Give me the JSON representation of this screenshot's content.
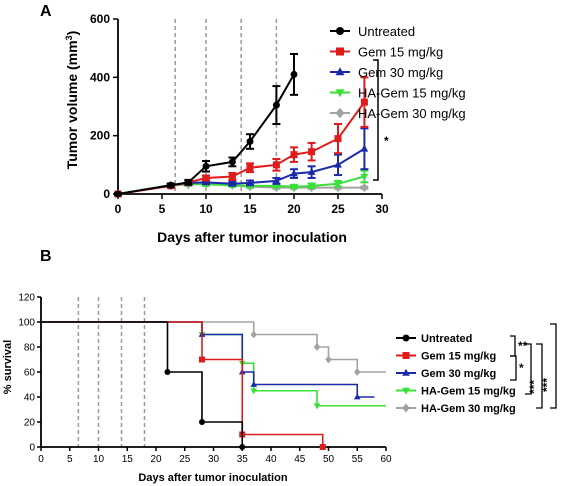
{
  "chart_data": [
    {
      "panel": "A",
      "type": "line",
      "xlabel": "Days after tumor inoculation",
      "ylabel": "Tumor volume (mm³)",
      "xlim": [
        0,
        30
      ],
      "ylim": [
        0,
        600
      ],
      "xticks": [
        0,
        5,
        10,
        15,
        20,
        25,
        30
      ],
      "yticks": [
        0,
        200,
        400,
        600
      ],
      "treatment_days": [
        6.5,
        10,
        14,
        18
      ],
      "significance": "*",
      "series": [
        {
          "name": "Untreated",
          "color": "#000000",
          "marker": "circle",
          "x": [
            0,
            6,
            8,
            10,
            13,
            15,
            18,
            20
          ],
          "y": [
            0,
            30,
            40,
            95,
            110,
            180,
            305,
            410
          ],
          "err": [
            3,
            5,
            8,
            18,
            15,
            25,
            65,
            70
          ]
        },
        {
          "name": "Gem 15 mg/kg",
          "color": "#e01b1b",
          "marker": "square",
          "x": [
            0,
            6,
            8,
            10,
            13,
            15,
            18,
            20,
            22,
            25,
            28
          ],
          "y": [
            0,
            28,
            40,
            55,
            60,
            90,
            100,
            135,
            145,
            190,
            315
          ],
          "err": [
            3,
            5,
            8,
            8,
            12,
            15,
            20,
            25,
            30,
            50,
            85
          ]
        },
        {
          "name": "Gem 30 mg/kg",
          "color": "#1a2aa8",
          "marker": "triangle",
          "x": [
            0,
            6,
            8,
            10,
            13,
            15,
            18,
            20,
            22,
            25,
            28
          ],
          "y": [
            0,
            30,
            38,
            40,
            35,
            38,
            45,
            70,
            75,
            100,
            155
          ],
          "err": [
            3,
            5,
            6,
            6,
            6,
            8,
            10,
            15,
            20,
            35,
            70
          ]
        },
        {
          "name": "HA-Gem 15 mg/kg",
          "color": "#38e038",
          "marker": "triangle-down",
          "x": [
            0,
            6,
            8,
            10,
            13,
            15,
            18,
            20,
            22,
            25,
            28
          ],
          "y": [
            0,
            30,
            35,
            33,
            30,
            28,
            28,
            25,
            28,
            35,
            60
          ],
          "err": [
            3,
            5,
            5,
            5,
            5,
            5,
            5,
            5,
            8,
            10,
            20
          ]
        },
        {
          "name": "HA-Gem 30 mg/kg",
          "color": "#a3a3a3",
          "marker": "diamond",
          "x": [
            0,
            6,
            8,
            10,
            13,
            15,
            18,
            20,
            22,
            25,
            28
          ],
          "y": [
            0,
            30,
            32,
            35,
            30,
            25,
            22,
            22,
            22,
            22,
            22
          ],
          "err": [
            3,
            4,
            4,
            4,
            4,
            4,
            4,
            4,
            4,
            4,
            4
          ]
        }
      ]
    },
    {
      "panel": "B",
      "type": "line",
      "xlabel": "Days after tumor inoculation",
      "ylabel": "% survival",
      "xlim": [
        0,
        60
      ],
      "ylim": [
        0,
        120
      ],
      "xticks": [
        0,
        5,
        10,
        15,
        20,
        25,
        30,
        35,
        40,
        45,
        50,
        55,
        60
      ],
      "yticks": [
        0,
        20,
        40,
        60,
        80,
        100,
        120
      ],
      "treatment_days": [
        6.5,
        10,
        14,
        18
      ],
      "significance": [
        "**",
        "*",
        "***",
        "***"
      ],
      "series": [
        {
          "name": "Untreated",
          "color": "#000000",
          "marker": "circle",
          "steps": [
            [
              0,
              100
            ],
            [
              22,
              60
            ],
            [
              28,
              20
            ],
            [
              35,
              0
            ]
          ],
          "end": 35,
          "markers": [
            [
              22,
              60
            ],
            [
              28,
              20
            ],
            [
              35,
              0
            ]
          ]
        },
        {
          "name": "Gem 15 mg/kg",
          "color": "#e01b1b",
          "marker": "square",
          "steps": [
            [
              0,
              100
            ],
            [
              28,
              70
            ],
            [
              35,
              10
            ],
            [
              49,
              0
            ]
          ],
          "end": 49,
          "markers": [
            [
              28,
              70
            ],
            [
              35,
              10
            ],
            [
              49,
              0
            ]
          ]
        },
        {
          "name": "Gem 30 mg/kg",
          "color": "#1a2aa8",
          "marker": "triangle",
          "steps": [
            [
              0,
              100
            ],
            [
              28,
              90
            ],
            [
              35,
              60
            ],
            [
              37,
              50
            ],
            [
              55,
              40
            ]
          ],
          "end": 58,
          "markers": [
            [
              28,
              90
            ],
            [
              35,
              60
            ],
            [
              37,
              50
            ],
            [
              55,
              40
            ]
          ]
        },
        {
          "name": "HA-Gem 15 mg/kg",
          "color": "#38e038",
          "marker": "triangle-down",
          "steps": [
            [
              0,
              100
            ],
            [
              28,
              90
            ],
            [
              35,
              67
            ],
            [
              37,
              45
            ],
            [
              48,
              33
            ]
          ],
          "end": 60,
          "markers": [
            [
              28,
              90
            ],
            [
              35,
              67
            ],
            [
              37,
              45
            ],
            [
              48,
              33
            ]
          ]
        },
        {
          "name": "HA-Gem 30 mg/kg",
          "color": "#a3a3a3",
          "marker": "diamond",
          "steps": [
            [
              0,
              100
            ],
            [
              37,
              90
            ],
            [
              48,
              80
            ],
            [
              50,
              70
            ],
            [
              55,
              60
            ]
          ],
          "end": 60,
          "markers": [
            [
              37,
              90
            ],
            [
              48,
              80
            ],
            [
              50,
              70
            ],
            [
              55,
              60
            ]
          ]
        }
      ]
    }
  ]
}
